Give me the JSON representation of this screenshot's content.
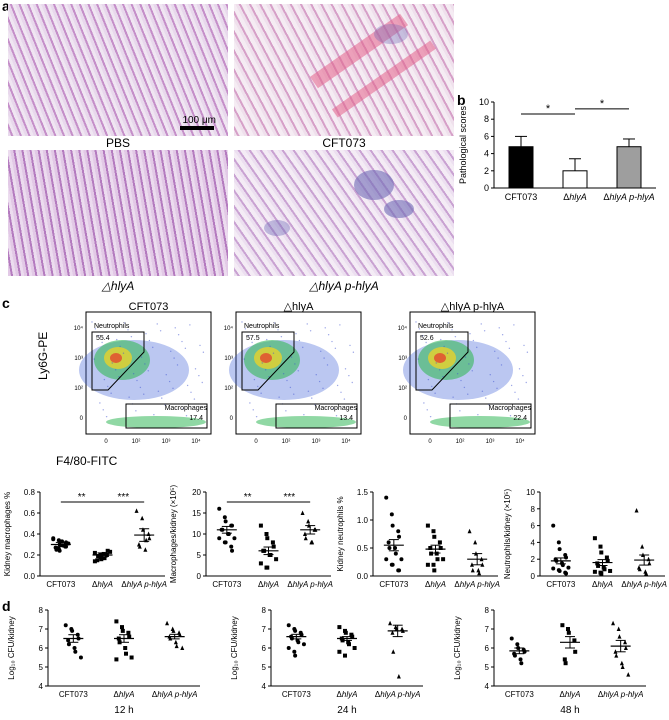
{
  "panels": {
    "a": "a",
    "b": "b",
    "c": "c",
    "d": "d"
  },
  "panel_a": {
    "captions": [
      "PBS",
      "CFT073",
      "△hlyA",
      "△hlyA p-hlyA"
    ],
    "scale_bar": "100 μm"
  },
  "panel_c_flow": {
    "titles": [
      "CFT073",
      "△hlyA",
      "△hlyA p-hlyA"
    ],
    "neutrophils_label": "Neutrophils",
    "macrophages_label": "Macrophages",
    "neutrophil_values": [
      "55.4",
      "57.5",
      "52.6"
    ],
    "macrophage_values": [
      "17.4",
      "13.4",
      "22.4"
    ],
    "ylabel": "Ly6G-PE",
    "xlabel": "F4/80-FITC"
  },
  "chart_data": [
    {
      "type": "bar",
      "panel": "b",
      "categories": [
        "CFT073",
        "ΔhlyA",
        "ΔhlyA p-hlyA"
      ],
      "values": [
        4.8,
        2.0,
        4.8
      ],
      "errors": [
        1.2,
        1.4,
        0.9
      ],
      "colors": [
        "#000000",
        "#ffffff",
        "#9e9e9e"
      ],
      "ylabel": "Pathological scores",
      "ylim": [
        0,
        10
      ],
      "yticks": [
        0,
        2,
        4,
        6,
        8,
        10
      ],
      "significance": [
        "*",
        "*"
      ]
    },
    {
      "type": "scatter",
      "panel": "c1",
      "categories": [
        "CFT073",
        "ΔhlyA",
        "ΔhlyA p-hlyA"
      ],
      "ylabel": "Kidney macrophages %",
      "ylim": [
        0,
        0.8
      ],
      "yticks": [
        "0.0",
        "0.2",
        "0.4",
        "0.6",
        "0.8"
      ],
      "means": [
        0.3,
        0.2,
        0.39
      ],
      "sems": [
        0.02,
        0.02,
        0.06
      ],
      "points": [
        [
          0.36,
          0.34,
          0.3,
          0.28,
          0.32,
          0.27,
          0.25,
          0.33,
          0.29,
          0.31,
          0.35,
          0.26,
          0.24,
          0.3,
          0.28
        ],
        [
          0.22,
          0.18,
          0.16,
          0.2,
          0.24,
          0.15,
          0.19,
          0.21,
          0.17,
          0.23,
          0.14,
          0.2,
          0.18
        ],
        [
          0.62,
          0.55,
          0.44,
          0.4,
          0.36,
          0.3,
          0.28,
          0.25,
          0.34
        ]
      ],
      "markers": [
        "circle",
        "square",
        "triangle"
      ],
      "significance": [
        "**",
        "***"
      ]
    },
    {
      "type": "scatter",
      "panel": "c2",
      "categories": [
        "CFT073",
        "ΔhlyA",
        "ΔhlyA p-hlyA"
      ],
      "ylabel": "Macrophages/kidney (×10⁵)",
      "ylim": [
        0,
        20
      ],
      "yticks": [
        "0",
        "5",
        "10",
        "15",
        "20"
      ],
      "means": [
        11.0,
        6.0,
        11.0
      ],
      "sems": [
        0.8,
        0.9,
        1.0
      ],
      "points": [
        [
          16,
          14,
          13,
          12,
          12,
          11,
          11,
          10,
          10,
          9,
          9,
          8,
          8,
          7,
          6
        ],
        [
          12,
          10,
          9,
          8,
          7,
          6,
          6,
          5,
          5,
          4,
          3,
          2,
          2
        ],
        [
          15,
          13,
          12,
          11,
          11,
          10,
          9,
          8,
          8
        ]
      ],
      "markers": [
        "circle",
        "square",
        "triangle"
      ],
      "significance": [
        "**",
        "***"
      ]
    },
    {
      "type": "scatter",
      "panel": "c3",
      "categories": [
        "CFT073",
        "ΔhlyA",
        "ΔhlyA p-hlyA"
      ],
      "ylabel": "Kidney neutrophils %",
      "ylim": [
        0,
        1.5
      ],
      "yticks": [
        "0.0",
        "0.5",
        "1.0",
        "1.5"
      ],
      "means": [
        0.55,
        0.48,
        0.3
      ],
      "sems": [
        0.1,
        0.07,
        0.1
      ],
      "points": [
        [
          1.4,
          1.1,
          0.9,
          0.8,
          0.7,
          0.6,
          0.5,
          0.5,
          0.4,
          0.3,
          0.3,
          0.2,
          0.2,
          0.1,
          0.1
        ],
        [
          0.9,
          0.8,
          0.7,
          0.6,
          0.5,
          0.5,
          0.4,
          0.4,
          0.3,
          0.3,
          0.2,
          0.2,
          0.1
        ],
        [
          0.8,
          0.6,
          0.4,
          0.3,
          0.2,
          0.2,
          0.1,
          0.1,
          0.05
        ]
      ],
      "markers": [
        "circle",
        "square",
        "triangle"
      ]
    },
    {
      "type": "scatter",
      "panel": "c4",
      "categories": [
        "CFT073",
        "ΔhlyA",
        "ΔhlyA p-hlyA"
      ],
      "ylabel": "Neutrophils/kidney (×10⁵)",
      "ylim": [
        0,
        10
      ],
      "yticks": [
        "0",
        "2",
        "4",
        "6",
        "8",
        "10"
      ],
      "means": [
        1.8,
        1.6,
        1.9
      ],
      "sems": [
        0.35,
        0.35,
        0.6
      ],
      "points": [
        [
          6.0,
          4.0,
          3.2,
          2.5,
          2.2,
          2.0,
          1.8,
          1.5,
          1.3,
          1.0,
          0.9,
          0.7,
          0.6,
          0.4,
          0.3
        ],
        [
          4.5,
          3.5,
          2.8,
          2.2,
          1.8,
          1.5,
          1.2,
          1.0,
          0.8,
          0.6,
          0.5,
          0.4,
          0.3
        ],
        [
          7.8,
          3.5,
          2.5,
          2.0,
          1.5,
          1.0,
          0.8,
          0.5,
          0.3
        ]
      ],
      "markers": [
        "circle",
        "square",
        "triangle"
      ]
    },
    {
      "type": "scatter",
      "panel": "d1",
      "categories": [
        "CFT073",
        "ΔhlyA",
        "ΔhlyA p-hlyA"
      ],
      "ylabel": "Log₁₀ CFU/kidney",
      "ylim": [
        4,
        8
      ],
      "yticks": [
        "4",
        "5",
        "6",
        "7",
        "8"
      ],
      "time": "12 h",
      "means": [
        6.5,
        6.5,
        6.6
      ],
      "sems": [
        0.2,
        0.2,
        0.12
      ],
      "points": [
        [
          7.2,
          7.0,
          6.9,
          6.7,
          6.5,
          6.4,
          6.2,
          6.0,
          5.8,
          5.5
        ],
        [
          7.4,
          7.1,
          6.9,
          6.8,
          6.6,
          6.5,
          6.3,
          6.0,
          5.7,
          5.5,
          5.4
        ],
        [
          7.3,
          7.0,
          6.9,
          6.8,
          6.7,
          6.6,
          6.5,
          6.3,
          6.1,
          6.0
        ]
      ],
      "markers": [
        "circle",
        "square",
        "triangle"
      ]
    },
    {
      "type": "scatter",
      "panel": "d2",
      "categories": [
        "CFT073",
        "ΔhlyA",
        "ΔhlyA p-hlyA"
      ],
      "ylabel": "Log₁₀ CFU/kidney",
      "ylim": [
        4,
        8
      ],
      "yticks": [
        "4",
        "5",
        "6",
        "7",
        "8"
      ],
      "time": "24 h",
      "means": [
        6.6,
        6.5,
        6.9
      ],
      "sems": [
        0.12,
        0.1,
        0.3
      ],
      "points": [
        [
          7.2,
          7.0,
          6.9,
          6.8,
          6.7,
          6.6,
          6.5,
          6.4,
          6.3,
          6.2,
          6.0,
          5.8,
          5.6
        ],
        [
          7.1,
          6.9,
          6.8,
          6.7,
          6.6,
          6.5,
          6.4,
          6.3,
          6.2,
          6.0,
          5.8,
          5.6
        ],
        [
          7.3,
          7.1,
          7.0,
          7.0,
          6.9,
          6.8,
          5.8,
          4.5
        ]
      ],
      "markers": [
        "circle",
        "square",
        "triangle"
      ]
    },
    {
      "type": "scatter",
      "panel": "d3",
      "categories": [
        "CFT073",
        "ΔhlyA",
        "ΔhlyA p-hlyA"
      ],
      "ylabel": "Log₁₀ CFU/kidney",
      "ylim": [
        4,
        8
      ],
      "yticks": [
        "4",
        "5",
        "6",
        "7",
        "8"
      ],
      "time": "48 h",
      "means": [
        5.85,
        6.3,
        6.1
      ],
      "sems": [
        0.15,
        0.3,
        0.3
      ],
      "points": [
        [
          6.5,
          6.2,
          6.0,
          5.9,
          5.8,
          5.7,
          5.6,
          5.4,
          5.2
        ],
        [
          7.2,
          7.0,
          6.8,
          6.4,
          5.8,
          5.4,
          5.2
        ],
        [
          7.3,
          7.0,
          6.6,
          6.3,
          6.0,
          5.8,
          5.6,
          5.2,
          5.0,
          4.6
        ]
      ],
      "markers": [
        "circle",
        "square",
        "triangle"
      ]
    }
  ]
}
